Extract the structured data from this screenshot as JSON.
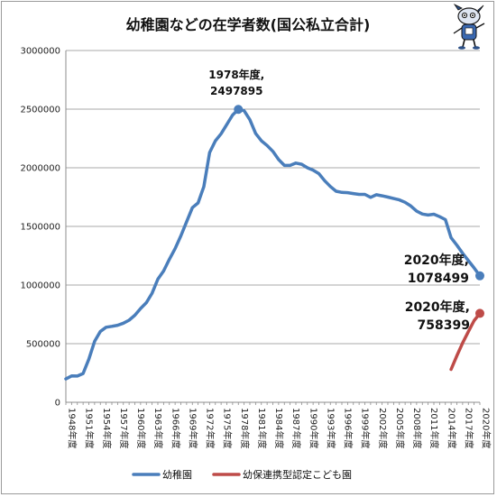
{
  "chart_data": {
    "type": "line",
    "title": "幼稚園などの在学者数(国公私立合計)",
    "y_ticks": [
      "3000000",
      "2500000",
      "2000000",
      "1500000",
      "1000000",
      "500000",
      "0"
    ],
    "ylim": [
      0,
      3000000
    ],
    "x_tick_labels": [
      "1948年度",
      "1951年度",
      "1954年度",
      "1957年度",
      "1960年度",
      "1963年度",
      "1966年度",
      "1969年度",
      "1972年度",
      "1975年度",
      "1978年度",
      "1981年度",
      "1984年度",
      "1987年度",
      "1990年度",
      "1993年度",
      "1996年度",
      "1999年度",
      "2002年度",
      "2005年度",
      "2008年度",
      "2011年度",
      "2014年度",
      "2017年度",
      "2020年度"
    ],
    "x_tick_years": [
      1948,
      1951,
      1954,
      1957,
      1960,
      1963,
      1966,
      1969,
      1972,
      1975,
      1978,
      1981,
      1984,
      1987,
      1990,
      1993,
      1996,
      1999,
      2002,
      2005,
      2008,
      2011,
      2014,
      2017,
      2020
    ],
    "xlim": [
      1948,
      2020
    ],
    "grid": "horizontal",
    "legend_position": "bottom",
    "series": [
      {
        "name": "幼稚園",
        "color": "#4a7ebb",
        "x": [
          1948,
          1949,
          1950,
          1951,
          1952,
          1953,
          1954,
          1955,
          1956,
          1957,
          1958,
          1959,
          1960,
          1961,
          1962,
          1963,
          1964,
          1965,
          1966,
          1967,
          1968,
          1969,
          1970,
          1971,
          1972,
          1973,
          1974,
          1975,
          1976,
          1977,
          1978,
          1979,
          1980,
          1981,
          1982,
          1983,
          1984,
          1985,
          1986,
          1987,
          1988,
          1989,
          1990,
          1991,
          1992,
          1993,
          1994,
          1995,
          1996,
          1997,
          1998,
          1999,
          2000,
          2001,
          2002,
          2003,
          2004,
          2005,
          2006,
          2007,
          2008,
          2009,
          2010,
          2011,
          2012,
          2013,
          2014,
          2015,
          2016,
          2017,
          2018,
          2019,
          2020
        ],
        "values": [
          199000,
          225000,
          224000,
          245000,
          368000,
          520000,
          605000,
          640000,
          648000,
          657000,
          675000,
          700000,
          742000,
          800000,
          850000,
          930000,
          1050000,
          1120000,
          1220000,
          1310000,
          1419000,
          1540000,
          1660000,
          1700000,
          1840000,
          2130000,
          2230000,
          2290000,
          2370000,
          2450000,
          2497895,
          2487000,
          2410000,
          2293000,
          2230000,
          2190000,
          2140000,
          2070000,
          2020000,
          2020000,
          2040000,
          2030000,
          2000000,
          1980000,
          1950000,
          1890000,
          1840000,
          1800000,
          1790000,
          1788000,
          1780000,
          1773000,
          1773000,
          1748000,
          1770000,
          1761000,
          1750000,
          1738000,
          1726000,
          1705000,
          1674000,
          1630000,
          1605000,
          1597000,
          1604000,
          1583000,
          1558000,
          1403000,
          1340000,
          1271000,
          1208000,
          1146000,
          1078499
        ]
      },
      {
        "name": "幼保連携型認定こども園",
        "color": "#be4b48",
        "x": [
          2015,
          2016,
          2017,
          2018,
          2019,
          2020
        ],
        "values": [
          281000,
          397000,
          506000,
          603000,
          696000,
          758399
        ]
      }
    ],
    "annotations": [
      {
        "line1": "1978年度,",
        "line2": "2497895"
      },
      {
        "line1": "2020年度,",
        "line2": "1078499"
      },
      {
        "line1": "2020年度,",
        "line2": "758399"
      }
    ]
  }
}
